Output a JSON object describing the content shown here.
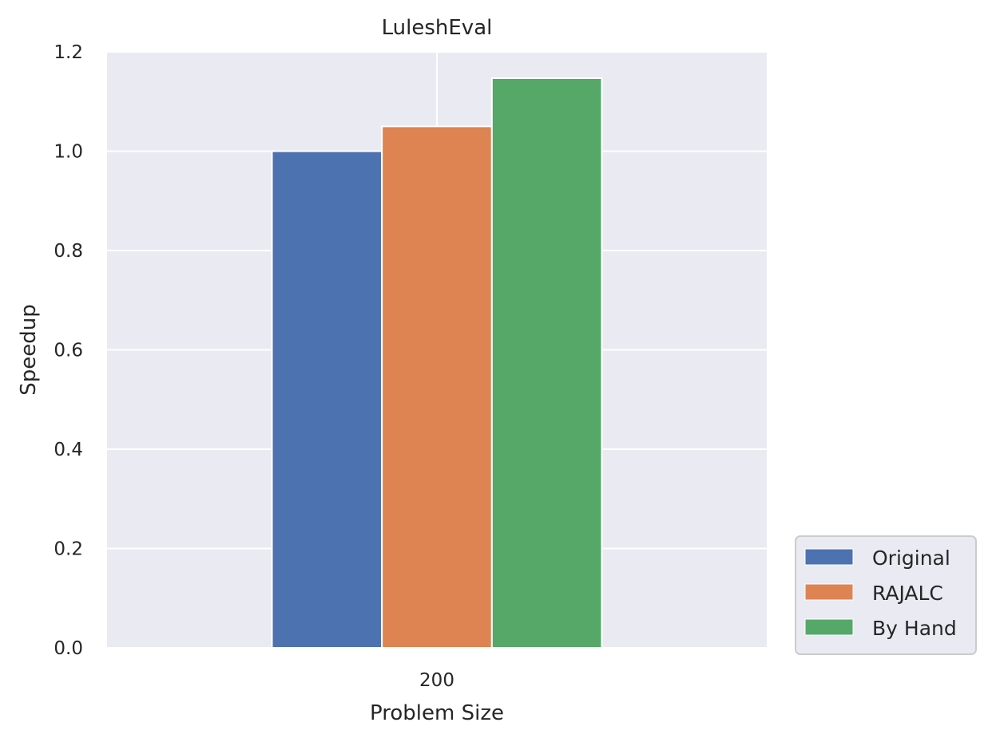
{
  "chart_data": {
    "type": "bar",
    "title": "LuleshEval",
    "xlabel": "Problem Size",
    "ylabel": "Speedup",
    "categories": [
      "200"
    ],
    "series": [
      {
        "name": "Original",
        "values": [
          1.0
        ],
        "color": "#4c72b0"
      },
      {
        "name": "RAJALC",
        "values": [
          1.05
        ],
        "color": "#dd8452"
      },
      {
        "name": "By Hand",
        "values": [
          1.147
        ],
        "color": "#55a868"
      }
    ],
    "ylim": [
      0,
      1.2
    ],
    "yticks": [
      "0.0",
      "0.2",
      "0.4",
      "0.6",
      "0.8",
      "1.0",
      "1.2"
    ],
    "grid": true,
    "legend_position": "lower-right-outside",
    "colors": {
      "plot_background": "#eaeaf2",
      "grid": "#ffffff"
    }
  }
}
